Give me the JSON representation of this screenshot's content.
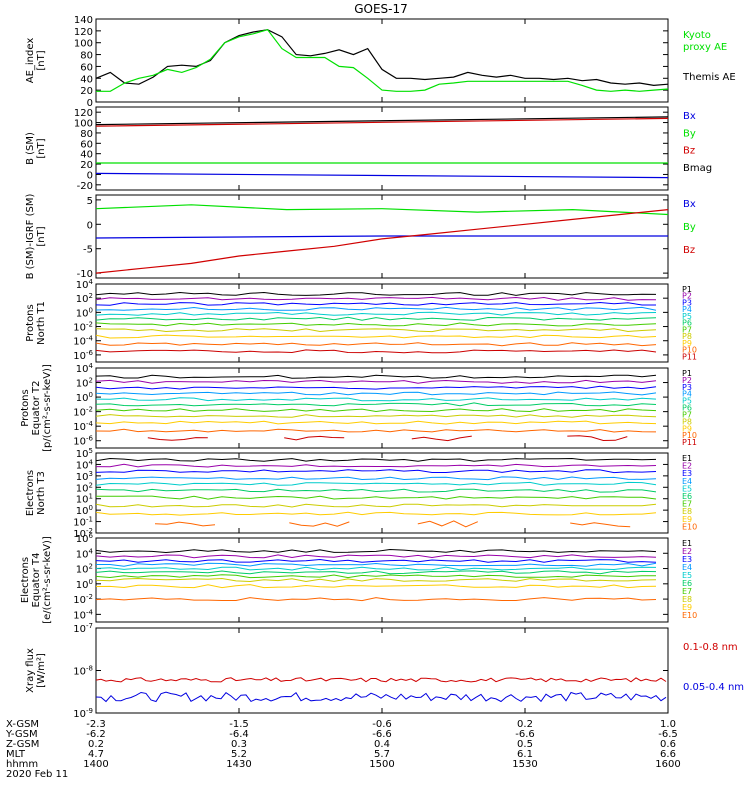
{
  "title": "GOES-17",
  "colors": {
    "black": "#000000",
    "green": "#00e000",
    "blue": "#0000e0",
    "red": "#d00000",
    "p_palette": [
      "#000000",
      "#9900aa",
      "#0000ff",
      "#0099ff",
      "#00cccc",
      "#00cc66",
      "#44cc00",
      "#cccc00",
      "#ffcc00",
      "#ff6600",
      "#cc0000"
    ]
  },
  "chart_data": [
    {
      "type": "line",
      "ylabel": [
        "AE_index",
        "[nT]"
      ],
      "ylim": [
        0,
        140
      ],
      "ticks": [
        "0",
        "20",
        "40",
        "60",
        "80",
        "100",
        "120",
        "140"
      ],
      "legend": [
        {
          "text": "Kyoto",
          "color": "#00e000"
        },
        {
          "text": "proxy AE",
          "color": "#00e000"
        },
        {
          "text": "Themis AE",
          "color": "#000000"
        }
      ],
      "series": [
        {
          "name": "Themis AE",
          "color": "#000000",
          "x": [
            1400,
            1403,
            1406,
            1409,
            1412,
            1415,
            1418,
            1421,
            1424,
            1427,
            1430,
            1433,
            1436,
            1439,
            1442,
            1445,
            1448,
            1451,
            1454,
            1457,
            1500,
            1503,
            1506,
            1509,
            1512,
            1515,
            1518,
            1521,
            1524,
            1527,
            1530,
            1533,
            1536,
            1539,
            1542,
            1545,
            1548,
            1551,
            1554,
            1557,
            1600
          ],
          "y": [
            40,
            50,
            32,
            30,
            42,
            60,
            62,
            60,
            70,
            100,
            112,
            118,
            122,
            110,
            80,
            78,
            82,
            88,
            80,
            90,
            55,
            40,
            40,
            38,
            40,
            42,
            50,
            45,
            42,
            45,
            40,
            40,
            38,
            40,
            36,
            38,
            32,
            30,
            32,
            28,
            30
          ]
        },
        {
          "name": "Kyoto proxy AE",
          "color": "#00e000",
          "x": [
            1400,
            1403,
            1406,
            1409,
            1412,
            1415,
            1418,
            1421,
            1424,
            1427,
            1430,
            1433,
            1436,
            1439,
            1442,
            1445,
            1448,
            1451,
            1454,
            1457,
            1500,
            1503,
            1506,
            1509,
            1512,
            1515,
            1518,
            1521,
            1524,
            1527,
            1530,
            1533,
            1536,
            1539,
            1542,
            1545,
            1548,
            1551,
            1554,
            1557,
            1600
          ],
          "y": [
            18,
            18,
            32,
            40,
            45,
            55,
            50,
            58,
            72,
            100,
            110,
            115,
            122,
            90,
            75,
            75,
            75,
            60,
            58,
            40,
            20,
            18,
            18,
            20,
            30,
            32,
            35,
            35,
            35,
            35,
            35,
            35,
            35,
            35,
            28,
            20,
            18,
            20,
            18,
            20,
            22
          ]
        }
      ]
    },
    {
      "type": "line",
      "ylabel": [
        "B (SM)",
        "[nT]"
      ],
      "ylim": [
        -30,
        130
      ],
      "ticks": [
        "-20",
        "0",
        "20",
        "40",
        "60",
        "80",
        "100",
        "120"
      ],
      "legend": [
        {
          "text": "Bx",
          "color": "#0000e0"
        },
        {
          "text": "By",
          "color": "#00e000"
        },
        {
          "text": "Bz",
          "color": "#d00000"
        },
        {
          "text": "Bmag",
          "color": "#000000"
        }
      ],
      "series": [
        {
          "name": "Bx",
          "color": "#0000e0",
          "x": [
            1400,
            1600
          ],
          "y": [
            2,
            -6
          ]
        },
        {
          "name": "By",
          "color": "#00e000",
          "x": [
            1400,
            1600
          ],
          "y": [
            22,
            22
          ]
        },
        {
          "name": "Bz",
          "color": "#d00000",
          "x": [
            1400,
            1600
          ],
          "y": [
            93,
            108
          ]
        },
        {
          "name": "Bmag",
          "color": "#000000",
          "x": [
            1400,
            1600
          ],
          "y": [
            96,
            111
          ]
        }
      ]
    },
    {
      "type": "line",
      "ylabel": [
        "B (SM)-IGRF (SM)",
        "[nT]"
      ],
      "ylim": [
        -11,
        6
      ],
      "ticks": [
        "-10",
        "-5",
        "0",
        "5"
      ],
      "legend": [
        {
          "text": "Bx",
          "color": "#0000e0"
        },
        {
          "text": "By",
          "color": "#00e000"
        },
        {
          "text": "Bz",
          "color": "#d00000"
        }
      ],
      "series": [
        {
          "name": "Bx",
          "color": "#0000e0",
          "x": [
            1400,
            1430,
            1500,
            1530,
            1600
          ],
          "y": [
            -2.8,
            -2.6,
            -2.4,
            -2.4,
            -2.4
          ]
        },
        {
          "name": "By",
          "color": "#00e000",
          "x": [
            1400,
            1420,
            1440,
            1500,
            1520,
            1540,
            1600
          ],
          "y": [
            3.2,
            4,
            3.0,
            3.2,
            2.5,
            3,
            2.0
          ]
        },
        {
          "name": "Bz",
          "color": "#d00000",
          "x": [
            1400,
            1410,
            1420,
            1430,
            1440,
            1450,
            1500,
            1510,
            1520,
            1530,
            1540,
            1550,
            1600
          ],
          "y": [
            -10,
            -9,
            -8,
            -6.5,
            -5.5,
            -4.5,
            -3,
            -2,
            -1,
            0,
            1,
            2,
            3
          ]
        }
      ]
    },
    {
      "type": "line",
      "ylabel": [
        "Protons",
        "North T1"
      ],
      "yscale": "log",
      "ylim": [
        -7,
        4
      ],
      "ticks": [
        "10^4",
        "10^2",
        "10^0",
        "10^-2",
        "10^-4",
        "10^-6"
      ],
      "legend": [
        "P1",
        "P2",
        "P3",
        "P4",
        "P5",
        "P6",
        "P7",
        "P8",
        "P9",
        "P10",
        "P11"
      ],
      "levels_log10": [
        2.6,
        1.9,
        1.2,
        0.5,
        -0.2,
        -0.9,
        -1.7,
        -2.5,
        -3.4,
        -4.5,
        -5.5
      ]
    },
    {
      "type": "line",
      "ylabel": [
        "Protons",
        "Equator T2",
        "[p/(cm²-s-sr-keV)]"
      ],
      "yscale": "log",
      "ylim": [
        -7,
        4
      ],
      "ticks": [
        "10^4",
        "10^2",
        "10^0",
        "10^-2",
        "10^-4",
        "10^-6"
      ],
      "legend": [
        "P1",
        "P2",
        "P3",
        "P4",
        "P5",
        "P6",
        "P7",
        "P8",
        "P9",
        "P10",
        "P11"
      ],
      "levels_log10": [
        2.8,
        2.1,
        1.3,
        0.5,
        -0.3,
        -1.0,
        -1.8,
        -2.6,
        -3.5,
        -4.6,
        -5.6
      ]
    },
    {
      "type": "line",
      "ylabel": [
        "Electrons",
        "North T3"
      ],
      "yscale": "log",
      "ylim": [
        -2,
        5
      ],
      "ticks": [
        "10^5",
        "10^4",
        "10^3",
        "10^2",
        "10^1",
        "10^0",
        "10^-1",
        "10^-2"
      ],
      "legend": [
        "E1",
        "E2",
        "E3",
        "E4",
        "E5",
        "E6",
        "E7",
        "E8",
        "E9",
        "E10"
      ],
      "levels_log10": [
        4.4,
        3.9,
        3.4,
        2.8,
        2.3,
        1.7,
        1.1,
        0.4,
        -0.3,
        -1.2
      ]
    },
    {
      "type": "line",
      "ylabel": [
        "Electrons",
        "Equator T4",
        "[e/(cm²-s-sr-keV)]"
      ],
      "yscale": "log",
      "ylim": [
        -5,
        6
      ],
      "ticks": [
        "10^6",
        "10^4",
        "10^2",
        "10^0",
        "10^-2",
        "10^-4"
      ],
      "legend": [
        "E1",
        "E2",
        "E3",
        "E4",
        "E5",
        "E6",
        "E7",
        "E8",
        "E9",
        "E10"
      ],
      "levels_log10": [
        4.3,
        3.6,
        3.0,
        2.5,
        2.0,
        1.5,
        1.0,
        0.5,
        -0.3,
        -2.0
      ]
    },
    {
      "type": "line",
      "ylabel": [
        "Xray flux",
        "[W/m²]"
      ],
      "yscale": "log",
      "ylim": [
        -9,
        -7
      ],
      "ticks": [
        "10^-7",
        "10^-8",
        "10^-9"
      ],
      "legend": [
        {
          "text": "0.1-0.8 nm",
          "color": "#d00000"
        },
        {
          "text": "0.05-0.4 nm",
          "color": "#0000e0"
        }
      ],
      "series": [
        {
          "name": "0.1-0.8 nm",
          "color": "#d00000",
          "base_log10": -8.22
        },
        {
          "name": "0.05-0.4 nm",
          "color": "#0000e0",
          "base_log10": -8.62
        }
      ]
    }
  ],
  "xaxis": {
    "row_labels": [
      "X-GSM",
      "Y-GSM",
      "Z-GSM",
      "MLT",
      "hhmm",
      "2020 Feb 11"
    ],
    "columns": [
      [
        "-2.3",
        "-6.2",
        "0.2",
        "4.7",
        "1400"
      ],
      [
        "-1.5",
        "-6.4",
        "0.3",
        "5.2",
        "1430"
      ],
      [
        "-0.6",
        "-6.6",
        "0.4",
        "5.7",
        "1500"
      ],
      [
        "0.2",
        "-6.6",
        "0.5",
        "6.1",
        "1530"
      ],
      [
        "1.0",
        "-6.5",
        "0.6",
        "6.6",
        "1600"
      ]
    ]
  }
}
